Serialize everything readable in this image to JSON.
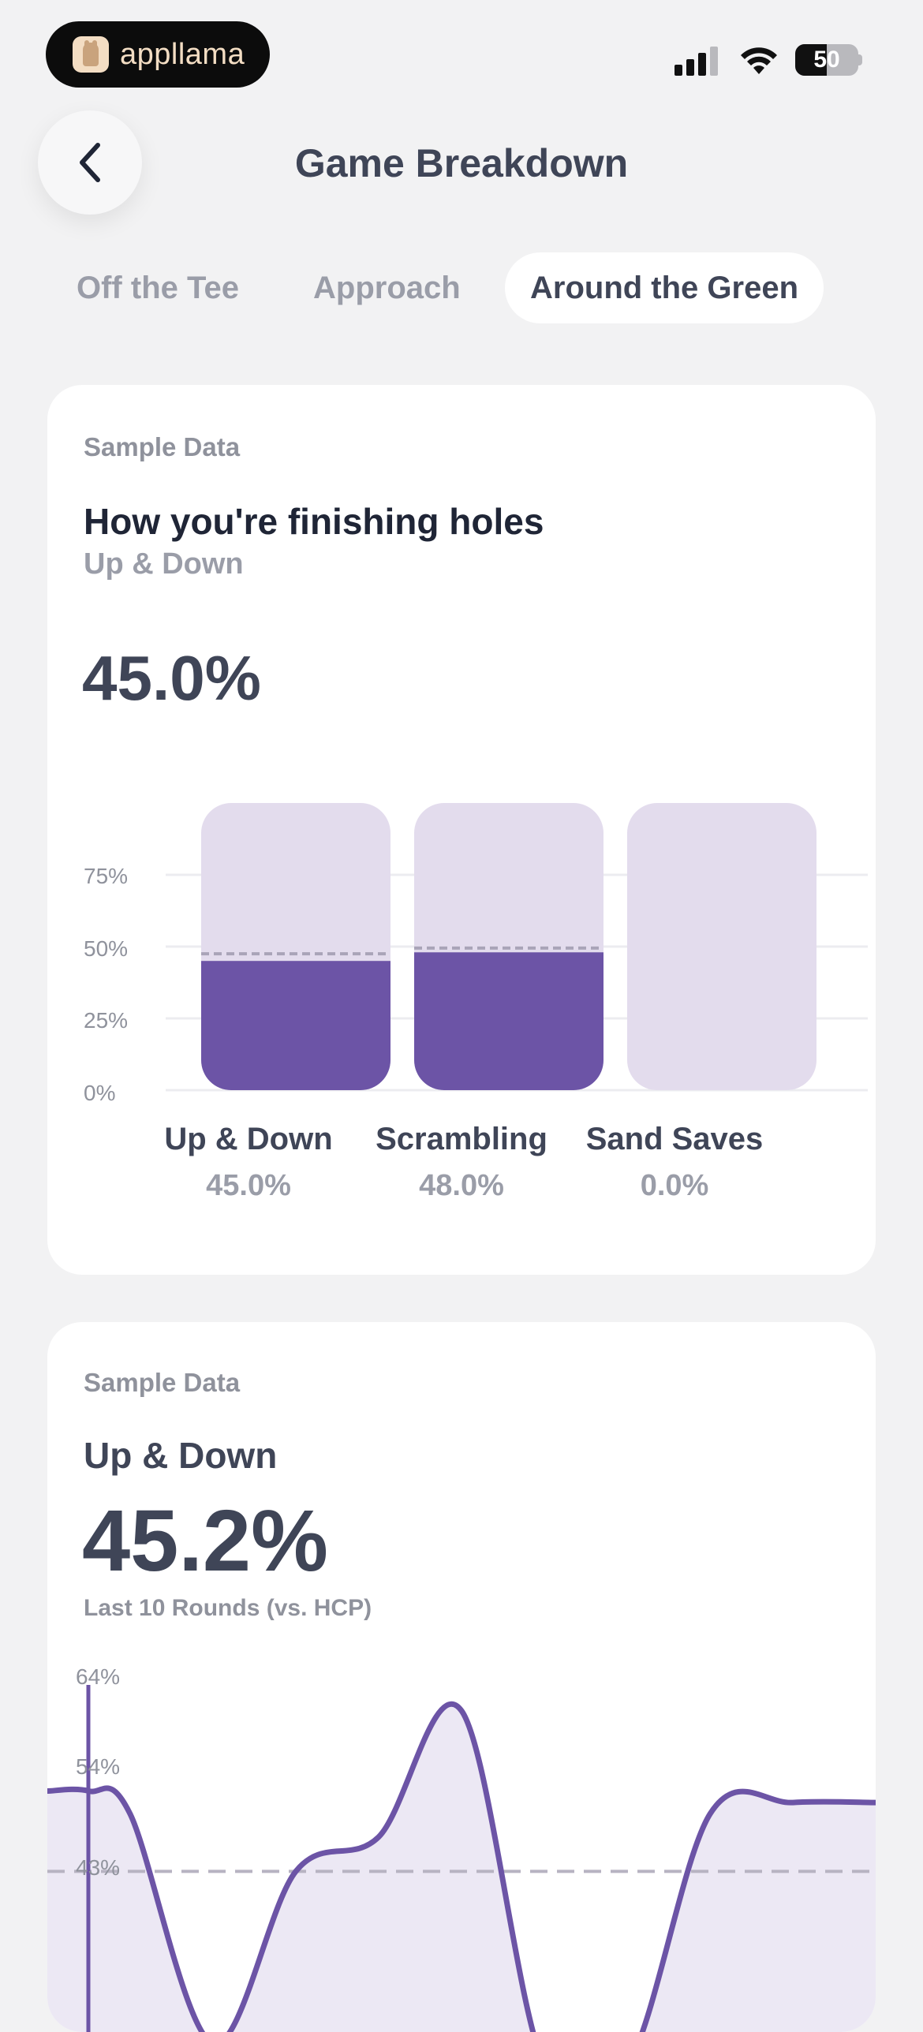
{
  "status_bar": {
    "app_badge": "appllama",
    "battery_level": "50"
  },
  "header": {
    "title": "Game Breakdown"
  },
  "tabs": [
    {
      "label": "Off the Tee",
      "active": false
    },
    {
      "label": "Approach",
      "active": false
    },
    {
      "label": "Around the Green",
      "active": true
    }
  ],
  "finishing_card": {
    "sample_label": "Sample Data",
    "title": "How you're finishing holes",
    "subtitle": "Up & Down",
    "value": "45.0%",
    "chart_data": {
      "type": "bar",
      "categories": [
        "Up & Down",
        "Scrambling",
        "Sand Saves"
      ],
      "values": [
        45.0,
        48.0,
        0.0
      ],
      "value_labels": [
        "45.0%",
        "48.0%",
        "0.0%"
      ],
      "y_ticks": [
        "0%",
        "25%",
        "50%",
        "75%"
      ],
      "ylim": [
        0,
        100
      ],
      "reference_values": [
        47.5,
        49.5,
        null
      ],
      "colors": {
        "fill": "#6c54a6",
        "track": "#e3dced",
        "reference": "#a9a4b8"
      }
    }
  },
  "updown_card": {
    "sample_label": "Sample Data",
    "title": "Up & Down",
    "value": "45.2%",
    "subtitle": "Last 10 Rounds (vs. HCP)",
    "chart_data": {
      "type": "area",
      "y_ticks": [
        "64%",
        "54%",
        "43%"
      ],
      "x": [
        0,
        0.5,
        1,
        2,
        3,
        4,
        5,
        6,
        7,
        8,
        9,
        10
      ],
      "values": [
        54,
        54,
        52,
        32,
        47,
        50,
        61,
        30,
        30,
        52,
        53,
        53
      ],
      "baseline": 47,
      "ylim": [
        33,
        66
      ],
      "colors": {
        "line": "#6c54a6",
        "area": "#ece8f4",
        "baseline": "#b7b3c2"
      }
    }
  }
}
